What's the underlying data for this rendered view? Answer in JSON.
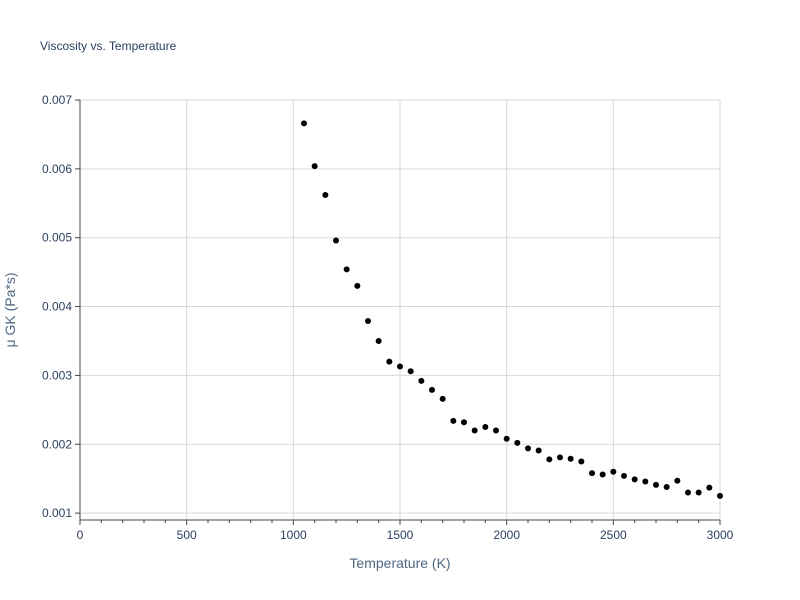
{
  "chart_data": {
    "type": "scatter",
    "title": "Viscosity vs. Temperature",
    "xlabel": "Temperature (K)",
    "ylabel": "μ GK (Pa*s)",
    "xlim": [
      0,
      3000
    ],
    "ylim": [
      0.0009,
      0.007
    ],
    "xticks": [
      0,
      500,
      1000,
      1500,
      2000,
      2500,
      3000
    ],
    "xtick_labels": [
      "0",
      "500",
      "1000",
      "1500",
      "2000",
      "2500",
      "3000"
    ],
    "xminor_step": 100,
    "yticks": [
      0.001,
      0.002,
      0.003,
      0.004,
      0.005,
      0.006,
      0.007
    ],
    "ytick_labels": [
      "0.001",
      "0.002",
      "0.003",
      "0.004",
      "0.005",
      "0.006",
      "0.007"
    ],
    "grid": true,
    "marker_color": "#000000",
    "series": [
      {
        "name": "μ GK",
        "x": [
          1050,
          1100,
          1150,
          1200,
          1250,
          1300,
          1350,
          1400,
          1450,
          1500,
          1550,
          1600,
          1650,
          1700,
          1750,
          1800,
          1850,
          1900,
          1950,
          2000,
          2050,
          2100,
          2150,
          2200,
          2250,
          2300,
          2350,
          2400,
          2450,
          2500,
          2550,
          2600,
          2650,
          2700,
          2750,
          2800,
          2850,
          2900,
          2950,
          3000
        ],
        "y": [
          0.00666,
          0.00604,
          0.00562,
          0.00496,
          0.00454,
          0.0043,
          0.00379,
          0.0035,
          0.0032,
          0.00313,
          0.00306,
          0.00292,
          0.00279,
          0.00266,
          0.00234,
          0.00232,
          0.0022,
          0.00225,
          0.0022,
          0.00208,
          0.00202,
          0.00194,
          0.00191,
          0.00178,
          0.00181,
          0.00179,
          0.00175,
          0.00158,
          0.00156,
          0.0016,
          0.00154,
          0.00149,
          0.00146,
          0.00141,
          0.00138,
          0.00147,
          0.0013,
          0.0013,
          0.00137,
          0.00125
        ]
      }
    ]
  }
}
